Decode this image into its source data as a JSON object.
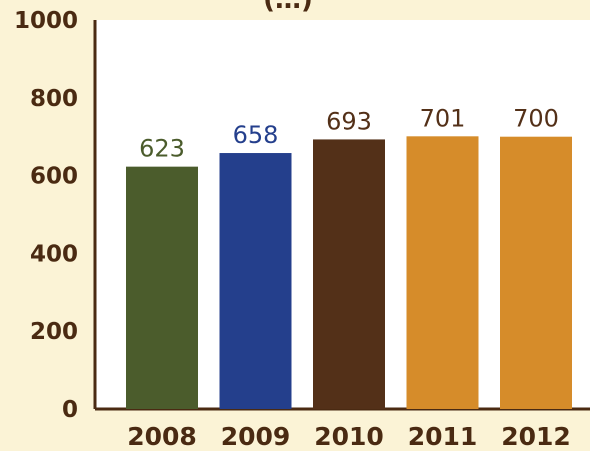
{
  "chart_data": {
    "type": "bar",
    "title_fragment": "(…)",
    "categories": [
      "2008",
      "2009",
      "2010",
      "2011",
      "2012"
    ],
    "values": [
      623,
      658,
      693,
      701,
      700
    ],
    "value_labels": [
      "623",
      "658",
      "693",
      "701",
      "700"
    ],
    "bar_colors": [
      "#4b5c2c",
      "#243f8c",
      "#533018",
      "#d68c2a",
      "#d68c2a"
    ],
    "value_label_colors": [
      "#4b5c2c",
      "#243f8c",
      "#533018",
      "#533018",
      "#533018"
    ],
    "yticks": [
      0,
      200,
      400,
      600,
      800,
      1000
    ],
    "ytick_labels": [
      "0",
      "200",
      "400",
      "600",
      "800",
      "1000"
    ],
    "ylim": [
      0,
      1000
    ],
    "grid": false,
    "legend": "none",
    "colors": {
      "background": "#fbf3d6",
      "plot_background": "#ffffff",
      "axis": "#4a2a12",
      "text": "#4a2a12"
    }
  }
}
